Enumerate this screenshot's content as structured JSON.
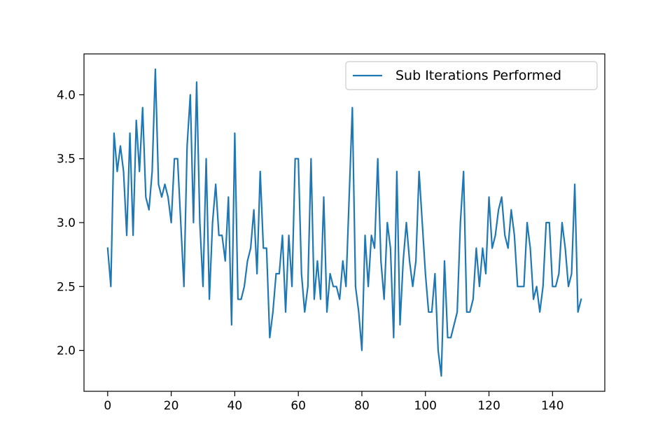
{
  "chart_data": {
    "type": "line",
    "title": "",
    "xlabel": "",
    "ylabel": "",
    "xlim": [
      -7.45,
      156.45
    ],
    "ylim": [
      1.68,
      4.32
    ],
    "xticks": [
      0,
      20,
      40,
      60,
      80,
      100,
      120,
      140
    ],
    "yticks": [
      2.0,
      2.5,
      3.0,
      3.5,
      4.0
    ],
    "xtick_labels": [
      "0",
      "20",
      "40",
      "60",
      "80",
      "100",
      "120",
      "140"
    ],
    "ytick_labels": [
      "2.0",
      "2.5",
      "3.0",
      "3.5",
      "4.0"
    ],
    "grid": false,
    "legend_position": "top-right",
    "series": [
      {
        "name": "Sub Iterations Performed",
        "color": "#1f77b4",
        "values": [
          2.8,
          2.5,
          3.7,
          3.4,
          3.6,
          3.4,
          2.9,
          3.7,
          2.9,
          3.8,
          3.4,
          3.9,
          3.2,
          3.1,
          3.4,
          4.2,
          3.3,
          3.2,
          3.3,
          3.2,
          3.0,
          3.5,
          3.5,
          3.0,
          2.5,
          3.6,
          4.0,
          3.0,
          4.1,
          3.0,
          2.5,
          3.5,
          2.4,
          3.0,
          3.3,
          2.9,
          2.9,
          2.7,
          3.2,
          2.2,
          3.7,
          2.4,
          2.4,
          2.5,
          2.7,
          2.8,
          3.1,
          2.6,
          3.4,
          2.8,
          2.8,
          2.1,
          2.3,
          2.6,
          2.6,
          2.9,
          2.3,
          2.9,
          2.5,
          3.5,
          3.5,
          2.6,
          2.3,
          2.5,
          3.5,
          2.4,
          2.7,
          2.4,
          3.2,
          2.3,
          2.6,
          2.5,
          2.5,
          2.4,
          2.7,
          2.5,
          3.2,
          3.9,
          2.5,
          2.3,
          2.0,
          2.9,
          2.5,
          2.9,
          2.8,
          3.5,
          2.7,
          2.4,
          3.0,
          2.8,
          2.1,
          3.4,
          2.2,
          2.7,
          3.0,
          2.7,
          2.5,
          2.7,
          3.4,
          3.0,
          2.6,
          2.3,
          2.3,
          2.6,
          2.0,
          1.8,
          2.7,
          2.1,
          2.1,
          2.2,
          2.3,
          3.0,
          3.4,
          2.3,
          2.3,
          2.4,
          2.8,
          2.5,
          2.8,
          2.6,
          3.2,
          2.8,
          2.9,
          3.1,
          3.2,
          2.9,
          2.8,
          3.1,
          2.9,
          2.5,
          2.5,
          2.5,
          3.0,
          2.8,
          2.4,
          2.5,
          2.3,
          2.5,
          3.0,
          3.0,
          2.5,
          2.5,
          2.6,
          3.0,
          2.8,
          2.5,
          2.6,
          3.3,
          2.3,
          2.4
        ]
      }
    ]
  }
}
